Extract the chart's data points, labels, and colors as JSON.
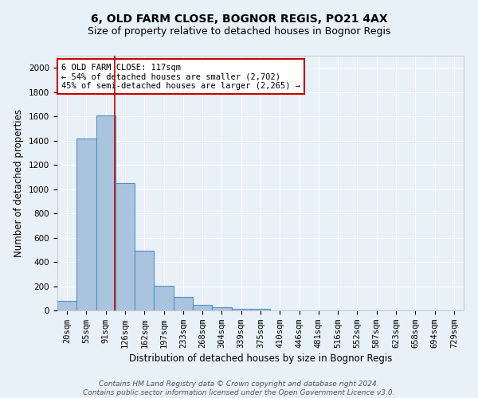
{
  "title": "6, OLD FARM CLOSE, BOGNOR REGIS, PO21 4AX",
  "subtitle": "Size of property relative to detached houses in Bognor Regis",
  "xlabel": "Distribution of detached houses by size in Bognor Regis",
  "ylabel": "Number of detached properties",
  "footer_line1": "Contains HM Land Registry data © Crown copyright and database right 2024.",
  "footer_line2": "Contains public sector information licensed under the Open Government Licence v3.0.",
  "bar_labels": [
    "20sqm",
    "55sqm",
    "91sqm",
    "126sqm",
    "162sqm",
    "197sqm",
    "233sqm",
    "268sqm",
    "304sqm",
    "339sqm",
    "375sqm",
    "410sqm",
    "446sqm",
    "481sqm",
    "516sqm",
    "552sqm",
    "587sqm",
    "623sqm",
    "658sqm",
    "694sqm",
    "729sqm"
  ],
  "bar_values": [
    80,
    1420,
    1610,
    1050,
    490,
    205,
    110,
    45,
    28,
    15,
    12,
    0,
    0,
    0,
    0,
    0,
    0,
    0,
    0,
    0,
    0
  ],
  "bar_color": "#aac4e0",
  "bar_edge_color": "#5590c0",
  "background_color": "#e8f0f8",
  "grid_color": "#ffffff",
  "ylim": [
    0,
    2100
  ],
  "yticks": [
    0,
    200,
    400,
    600,
    800,
    1000,
    1200,
    1400,
    1600,
    1800,
    2000
  ],
  "red_line_color": "#cc0000",
  "red_line_x": 2.45,
  "annotation_text_line1": "6 OLD FARM CLOSE: 117sqm",
  "annotation_text_line2": "← 54% of detached houses are smaller (2,702)",
  "annotation_text_line3": "45% of semi-detached houses are larger (2,265) →",
  "annotation_box_color": "#ffffff",
  "annotation_box_edge_color": "#cc0000",
  "title_fontsize": 10,
  "subtitle_fontsize": 9,
  "axis_label_fontsize": 8.5,
  "tick_fontsize": 7.5,
  "annotation_fontsize": 7.5,
  "footer_fontsize": 6.5
}
